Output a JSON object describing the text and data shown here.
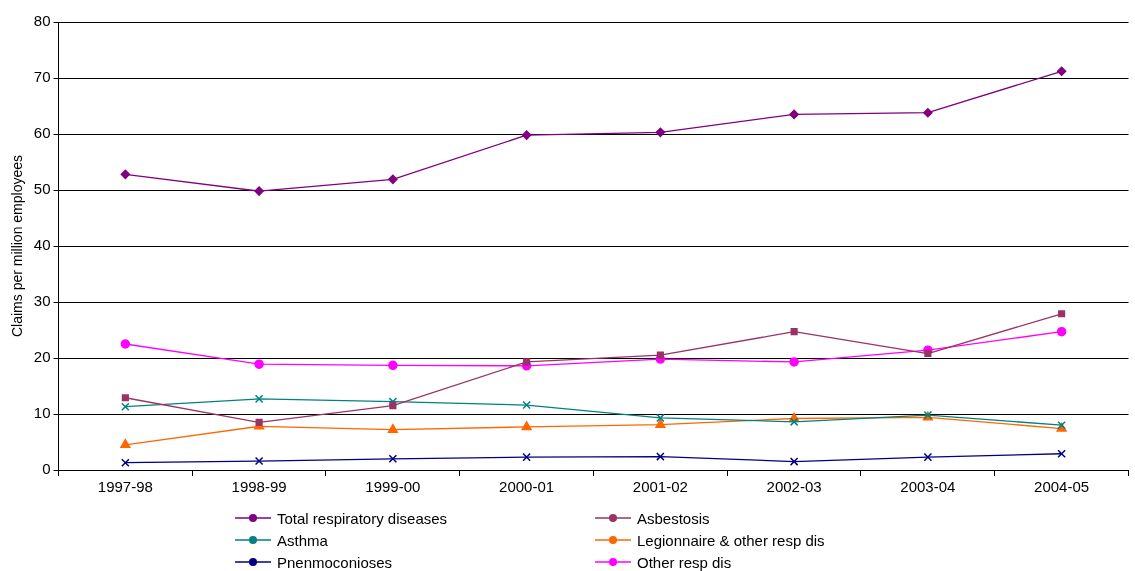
{
  "chart_data": {
    "type": "line",
    "ylabel": "Claims per million employees",
    "categories": [
      "1997-98",
      "1998-99",
      "1999-00",
      "2000-01",
      "2001-02",
      "2002-03",
      "2003-04",
      "2004-05"
    ],
    "series": [
      {
        "name": "Total respiratory diseases",
        "color": "#800080",
        "marker": "diamond",
        "values": [
          52.8,
          49.8,
          51.9,
          59.8,
          60.3,
          63.5,
          63.8,
          71.2
        ]
      },
      {
        "name": "Asbestosis",
        "color": "#993366",
        "marker": "square",
        "values": [
          12.9,
          8.5,
          11.5,
          19.3,
          20.5,
          24.7,
          20.8,
          27.9
        ]
      },
      {
        "name": "Asthma",
        "color": "#008080",
        "marker": "cross",
        "values": [
          11.3,
          12.7,
          12.2,
          11.6,
          9.3,
          8.6,
          9.8,
          8.0
        ]
      },
      {
        "name": "Legionnaire & other resp dis",
        "color": "#ff6600",
        "marker": "triangle",
        "values": [
          4.5,
          7.8,
          7.2,
          7.7,
          8.1,
          9.2,
          9.4,
          7.4
        ]
      },
      {
        "name": "Pnenmoconioses",
        "color": "#000080",
        "marker": "cross",
        "values": [
          1.3,
          1.6,
          2.0,
          2.3,
          2.4,
          1.5,
          2.3,
          2.9
        ]
      },
      {
        "name": "Other resp dis",
        "color": "#ff00ff",
        "marker": "circle",
        "values": [
          22.5,
          18.9,
          18.7,
          18.6,
          19.8,
          19.3,
          21.4,
          24.7
        ]
      }
    ],
    "ylim": [
      0,
      80
    ],
    "yticks": [
      0,
      10,
      20,
      30,
      40,
      50,
      60,
      70,
      80
    ],
    "grid": "y",
    "legend": "bottom"
  }
}
